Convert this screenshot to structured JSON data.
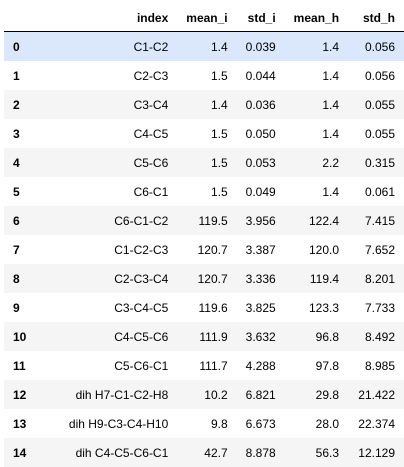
{
  "columns": [
    "",
    "index",
    "mean_i",
    "std_i",
    "mean_h",
    "std_h"
  ],
  "rows": [
    {
      "idx": "0",
      "index": "C1-C2",
      "mean_i": "1.4",
      "std_i": "0.039",
      "mean_h": "1.4",
      "std_h": "0.056"
    },
    {
      "idx": "1",
      "index": "C2-C3",
      "mean_i": "1.5",
      "std_i": "0.044",
      "mean_h": "1.4",
      "std_h": "0.056"
    },
    {
      "idx": "2",
      "index": "C3-C4",
      "mean_i": "1.4",
      "std_i": "0.036",
      "mean_h": "1.4",
      "std_h": "0.055"
    },
    {
      "idx": "3",
      "index": "C4-C5",
      "mean_i": "1.5",
      "std_i": "0.050",
      "mean_h": "1.4",
      "std_h": "0.055"
    },
    {
      "idx": "4",
      "index": "C5-C6",
      "mean_i": "1.5",
      "std_i": "0.053",
      "mean_h": "2.2",
      "std_h": "0.315"
    },
    {
      "idx": "5",
      "index": "C6-C1",
      "mean_i": "1.5",
      "std_i": "0.049",
      "mean_h": "1.4",
      "std_h": "0.061"
    },
    {
      "idx": "6",
      "index": "C6-C1-C2",
      "mean_i": "119.5",
      "std_i": "3.956",
      "mean_h": "122.4",
      "std_h": "7.415"
    },
    {
      "idx": "7",
      "index": "C1-C2-C3",
      "mean_i": "120.7",
      "std_i": "3.387",
      "mean_h": "120.0",
      "std_h": "7.652"
    },
    {
      "idx": "8",
      "index": "C2-C3-C4",
      "mean_i": "120.7",
      "std_i": "3.336",
      "mean_h": "119.4",
      "std_h": "8.201"
    },
    {
      "idx": "9",
      "index": "C3-C4-C5",
      "mean_i": "119.6",
      "std_i": "3.825",
      "mean_h": "123.3",
      "std_h": "7.733"
    },
    {
      "idx": "10",
      "index": "C4-C5-C6",
      "mean_i": "111.9",
      "std_i": "3.632",
      "mean_h": "96.8",
      "std_h": "8.492"
    },
    {
      "idx": "11",
      "index": "C5-C6-C1",
      "mean_i": "111.7",
      "std_i": "4.288",
      "mean_h": "97.8",
      "std_h": "8.985"
    },
    {
      "idx": "12",
      "index": "dih H7-C1-C2-H8",
      "mean_i": "10.2",
      "std_i": "6.821",
      "mean_h": "29.8",
      "std_h": "21.422"
    },
    {
      "idx": "13",
      "index": "dih H9-C3-C4-H10",
      "mean_i": "9.8",
      "std_i": "6.673",
      "mean_h": "28.0",
      "std_h": "22.374"
    },
    {
      "idx": "14",
      "index": "dih C4-C5-C6-C1",
      "mean_i": "42.7",
      "std_i": "8.878",
      "mean_h": "56.3",
      "std_h": "12.129"
    }
  ],
  "hovered_row": 0,
  "colors": {
    "row_odd": "#f5f5f5",
    "row_even": "#ffffff",
    "row_hover": "#dbe8fb",
    "header_border": "#000000"
  }
}
